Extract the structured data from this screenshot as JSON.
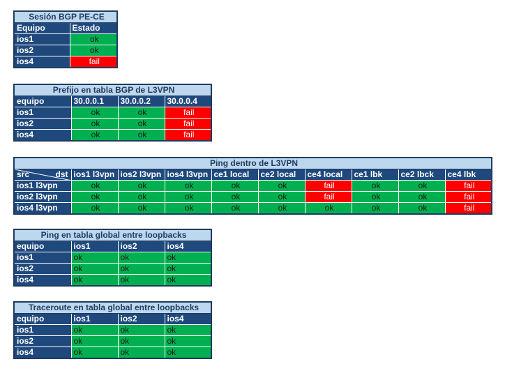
{
  "bgp": {
    "title": "Sesión BGP PE-CE",
    "headers": [
      "Equipo",
      "Estado"
    ],
    "rows": [
      {
        "label": "ios1",
        "cells": [
          "ok"
        ]
      },
      {
        "label": "ios2",
        "cells": [
          "ok"
        ]
      },
      {
        "label": "ios4",
        "cells": [
          "fail"
        ]
      }
    ]
  },
  "prefijo": {
    "title": "Prefijo en tabla BGP de L3VPN",
    "headers": [
      "equipo",
      "30.0.0.1",
      "30.0.0.2",
      "30.0.0.4"
    ],
    "rows": [
      {
        "label": "ios1",
        "cells": [
          "ok",
          "ok",
          "fail"
        ]
      },
      {
        "label": "ios2",
        "cells": [
          "ok",
          "ok",
          "fail"
        ]
      },
      {
        "label": "ios4",
        "cells": [
          "ok",
          "ok",
          "fail"
        ]
      }
    ]
  },
  "ping_vpn": {
    "title": "Ping dentro de L3VPN",
    "corner_src": "src",
    "corner_dst": "dst",
    "headers": [
      "ios1 l3vpn",
      "ios2 l3vpn",
      "ios4 l3vpn",
      "ce1 local",
      "ce2 local",
      "ce4 local",
      "ce1 lbk",
      "ce2 lbck",
      "ce4 lbk"
    ],
    "rows": [
      {
        "label": "ios1 l3vpn",
        "cells": [
          "ok",
          "ok",
          "ok",
          "ok",
          "ok",
          "fail",
          "ok",
          "ok",
          "fail"
        ]
      },
      {
        "label": "ios2 l3vpn",
        "cells": [
          "ok",
          "ok",
          "ok",
          "ok",
          "ok",
          "fail",
          "ok",
          "ok",
          "fail"
        ]
      },
      {
        "label": "ios4 l3vpn",
        "cells": [
          "ok",
          "ok",
          "ok",
          "ok",
          "ok",
          "ok",
          "ok",
          "ok",
          "fail"
        ]
      }
    ]
  },
  "ping_global": {
    "title": "Ping en tabla global entre loopbacks",
    "headers": [
      "equipo",
      "ios1",
      "ios2",
      "ios4"
    ],
    "rows": [
      {
        "label": "ios1",
        "cells": [
          "ok",
          "ok",
          "ok"
        ]
      },
      {
        "label": "ios2",
        "cells": [
          "ok",
          "ok",
          "ok"
        ]
      },
      {
        "label": "ios4",
        "cells": [
          "ok",
          "ok",
          "ok"
        ]
      }
    ]
  },
  "traceroute": {
    "title": "Traceroute en tabla global entre loopbacks",
    "headers": [
      "equipo",
      "ios1",
      "ios2",
      "ios4"
    ],
    "rows": [
      {
        "label": "ios1",
        "cells": [
          "ok",
          "ok",
          "ok"
        ]
      },
      {
        "label": "ios2",
        "cells": [
          "ok",
          "ok",
          "ok"
        ]
      },
      {
        "label": "ios4",
        "cells": [
          "ok",
          "ok",
          "ok"
        ]
      }
    ]
  }
}
